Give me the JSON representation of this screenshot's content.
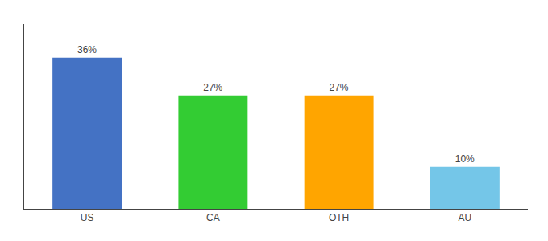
{
  "chart_data": {
    "type": "bar",
    "categories": [
      "US",
      "CA",
      "OTH",
      "AU"
    ],
    "values": [
      36,
      27,
      27,
      10
    ],
    "value_labels": [
      "36%",
      "27%",
      "27%",
      "10%"
    ],
    "data_labels": true,
    "colors": [
      "#4472C4",
      "#33CC33",
      "#FFA500",
      "#74C6E8"
    ],
    "ylim": [
      0,
      44
    ],
    "grid": false,
    "tick_labels": "x"
  }
}
